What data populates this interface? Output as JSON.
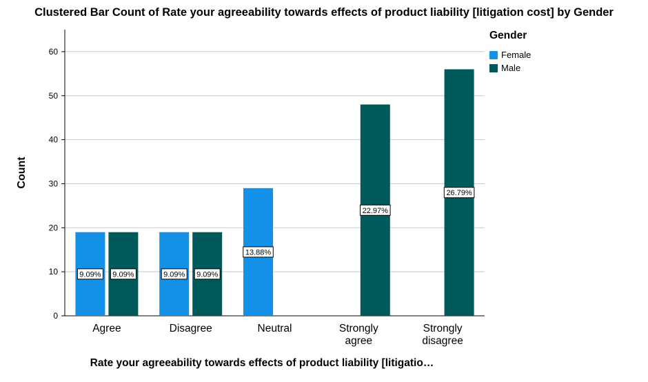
{
  "chart_data": {
    "type": "bar",
    "title": "Clustered Bar Count of Rate your agreeability towards effects of product liability  [litigation cost] by Gender",
    "xlabel": "Rate your agreeability towards effects of product liability  [litigatio…",
    "ylabel": "Count",
    "categories": [
      [
        "Agree"
      ],
      [
        "Disagree"
      ],
      [
        "Neutral"
      ],
      [
        "Strongly",
        "agree"
      ],
      [
        "Strongly",
        "disagree"
      ]
    ],
    "ylim": [
      0,
      65
    ],
    "yticks": [
      0,
      10,
      20,
      30,
      40,
      50,
      60
    ],
    "grid": true,
    "legend_title": "Gender",
    "legend_position": "top-right",
    "series": [
      {
        "name": "Female",
        "color": "#1390e8",
        "values": [
          19,
          19,
          29,
          null,
          null
        ],
        "labels": [
          "9.09%",
          "9.09%",
          "13.88%",
          null,
          null
        ]
      },
      {
        "name": "Male",
        "color": "#005a5a",
        "values": [
          19,
          19,
          null,
          48,
          56
        ],
        "labels": [
          "9.09%",
          "9.09%",
          null,
          "22.97%",
          "26.79%"
        ]
      }
    ]
  }
}
